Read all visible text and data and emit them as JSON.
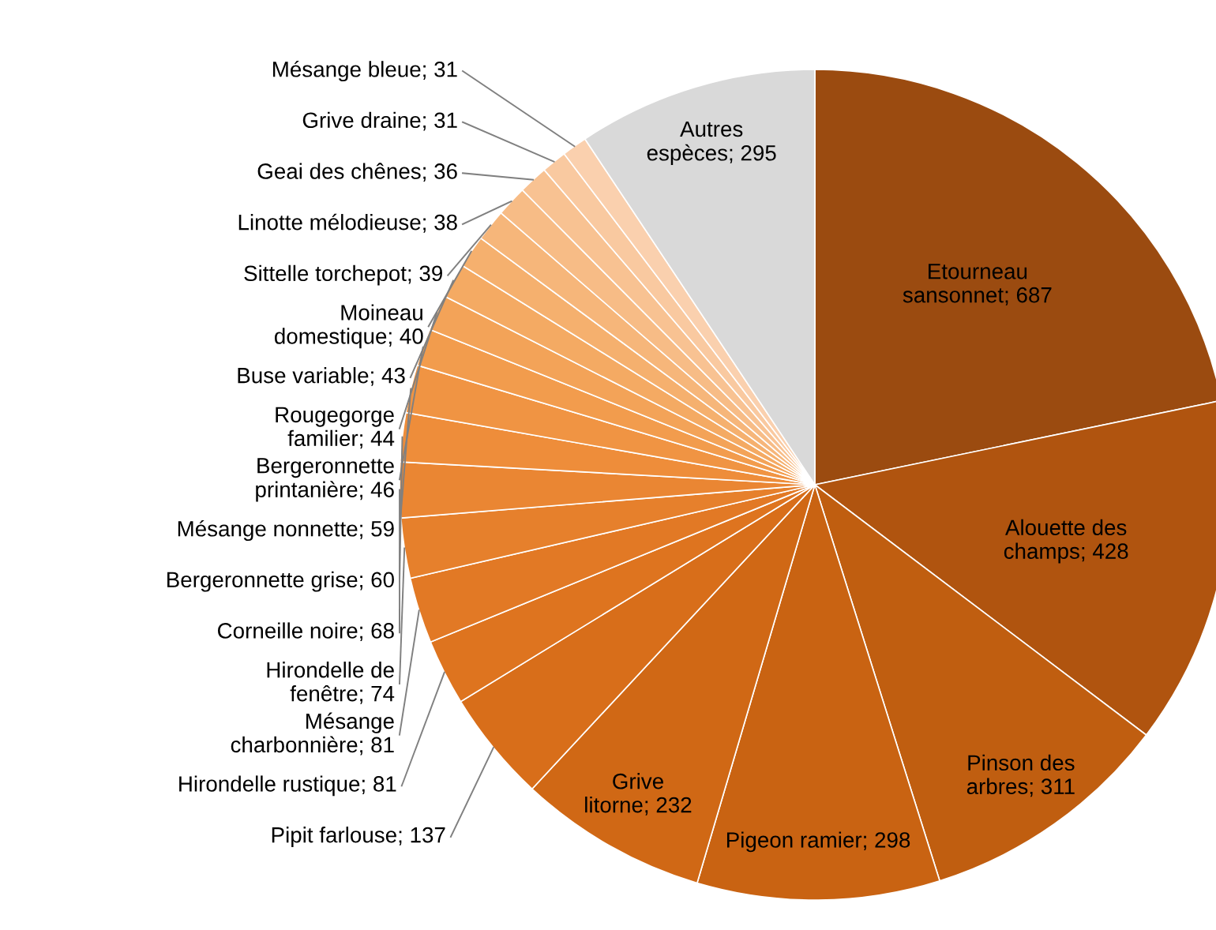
{
  "chart_data": {
    "type": "pie",
    "categories": [
      "Etourneau\nsansonnet",
      "Alouette des\nchamps",
      "Pinson des\narbres",
      "Pigeon ramier",
      "Grive\nlitorne",
      "Pipit farlouse",
      "Hirondelle rustique",
      "Mésange\ncharbonnière",
      "Hirondelle de\nfenêtre",
      "Corneille noire",
      "Bergeronnette grise",
      "Mésange nonnette",
      "Bergeronnette\nprintanière",
      "Rougegorge\nfamilier",
      "Buse variable",
      "Moineau\ndomestique",
      "Sittelle torchepot",
      "Linotte mélodieuse",
      "Geai des chênes",
      "Grive draine",
      "Mésange bleue",
      "Autres\nespèces"
    ],
    "values": [
      687,
      428,
      311,
      298,
      232,
      137,
      81,
      81,
      74,
      68,
      60,
      59,
      46,
      44,
      43,
      40,
      39,
      38,
      36,
      31,
      31,
      295
    ],
    "colors": [
      "#9b4b10",
      "#b0540f",
      "#c05e10",
      "#c96312",
      "#d06815",
      "#d86e1a",
      "#de741f",
      "#e27925",
      "#e6802c",
      "#ea8633",
      "#ee8d3a",
      "#f09443",
      "#f29c4d",
      "#f3a358",
      "#f4aa63",
      "#f5b06e",
      "#f6b67a",
      "#f7bc86",
      "#f8c292",
      "#f9c9a0",
      "#fad0ae",
      "#d9d9d9"
    ],
    "value_labels": [
      "687",
      "428",
      "311",
      "298",
      "232",
      "137",
      "81",
      "81",
      "74",
      "68",
      "60",
      "59",
      "46",
      "44",
      "43",
      "40",
      "39",
      "38",
      "36",
      "31",
      "31",
      "295"
    ],
    "legend": false
  }
}
